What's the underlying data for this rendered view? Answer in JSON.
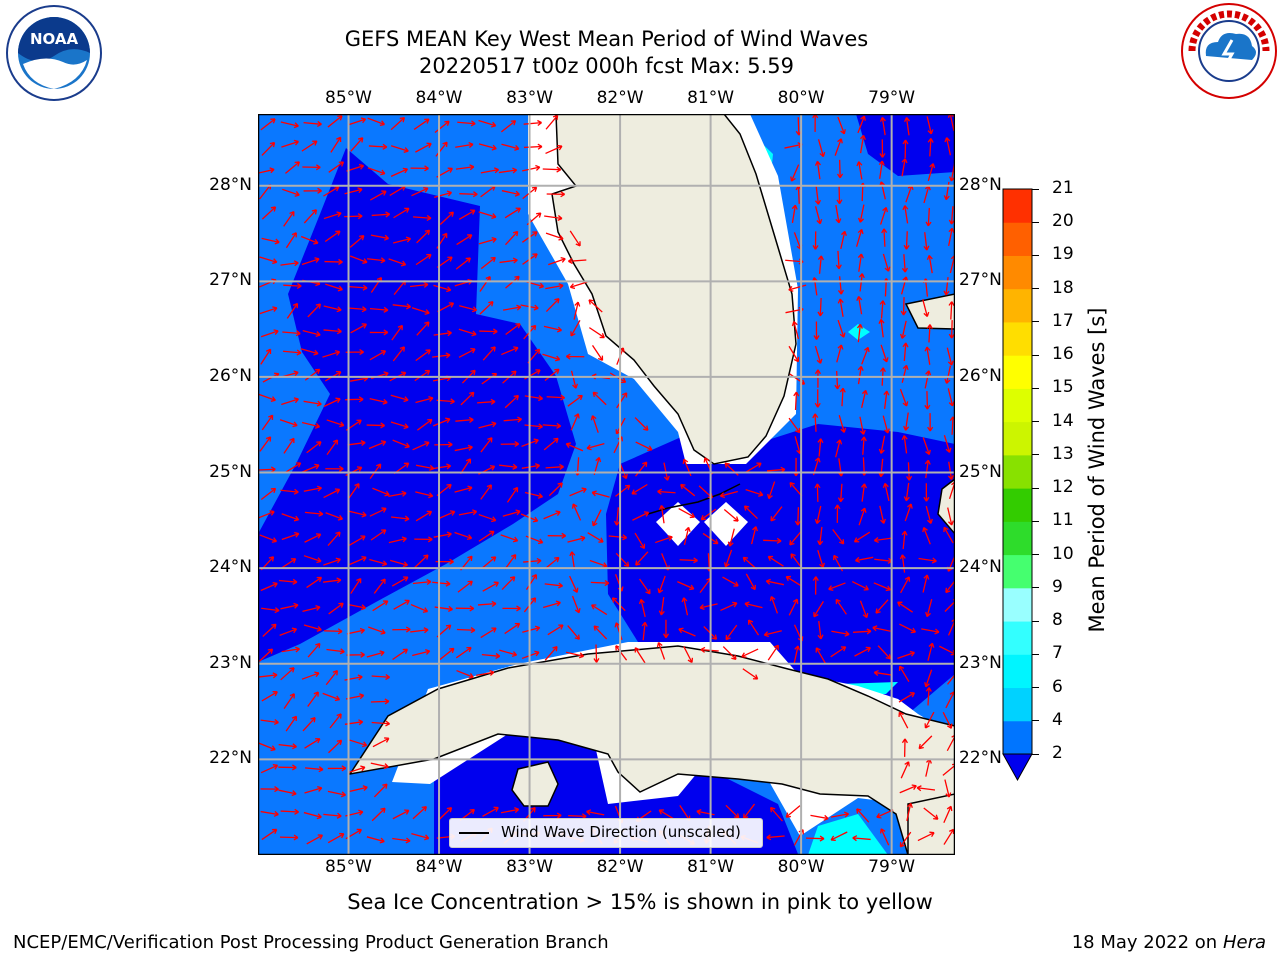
{
  "title": {
    "line1": "GEFS MEAN Key West Mean Period of Wind Waves",
    "line2": "20220517 t00z 000h fcst   Max: 5.59"
  },
  "map": {
    "lon_labels": [
      "85°W",
      "84°W",
      "83°W",
      "82°W",
      "81°W",
      "80°W",
      "79°W"
    ],
    "lat_labels": [
      "28°N",
      "27°N",
      "26°N",
      "25°N",
      "24°N",
      "23°N",
      "22°N"
    ],
    "lon_range": [
      -86.0,
      -78.3
    ],
    "lat_range": [
      21.0,
      28.75
    ],
    "land_color": "#eeeddf",
    "arrow_color": "#ff0000",
    "coast_color": "#000000",
    "grid_color": "#b0b0b0"
  },
  "legend": {
    "label": "Wind Wave Direction (unscaled)"
  },
  "colorbar": {
    "label": "Mean Period of Wind Waves [s]",
    "ticks": [
      "2",
      "4",
      "6",
      "7",
      "8",
      "9",
      "10",
      "11",
      "12",
      "13",
      "14",
      "15",
      "16",
      "17",
      "18",
      "19",
      "20",
      "21"
    ],
    "colors": [
      "#0075ff",
      "#00d2ff",
      "#00f5ff",
      "#33ffff",
      "#99ffff",
      "#45ff6f",
      "#2edc2b",
      "#33cc00",
      "#88e100",
      "#ccf500",
      "#ddff00",
      "#ffff00",
      "#ffde00",
      "#ffb400",
      "#ff8a00",
      "#ff6000",
      "#ff3000",
      "#ff0000"
    ],
    "under_color": "#0000ee"
  },
  "field_colors": {
    "lt2": "#0000ee",
    "2to4": "#0a78ff",
    "4to6": "#00ffff",
    "missing": "#ffffff"
  },
  "notes": {
    "sea_ice": "Sea Ice Concentration > 15% is shown in pink to yellow",
    "footer_left": "NCEP/EMC/Verification Post Processing Product Generation Branch",
    "footer_date": "18 May 2022 on",
    "footer_machine": "Hera"
  },
  "logos": {
    "left": "NOAA",
    "right": "NATIONAL WEATHER SERVICE"
  }
}
